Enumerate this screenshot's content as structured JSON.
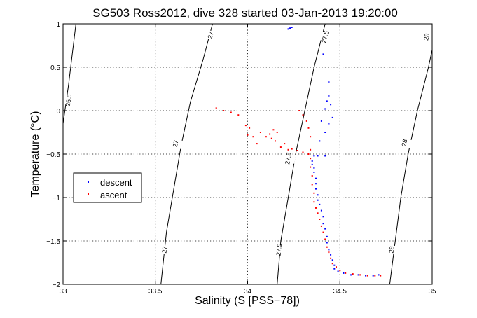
{
  "chart_data": {
    "type": "scatter",
    "title": "SG503 Ross2012, dive 328 started 03-Jan-2013 19:20:00",
    "xlabel": "Salinity (S [PSS−78])",
    "ylabel": "Temperature (°C)",
    "xlim": [
      33,
      35
    ],
    "ylim": [
      -2,
      1
    ],
    "grid": true,
    "legend_position": "left-middle",
    "x_ticks": [
      {
        "value": 33,
        "label": "33"
      },
      {
        "value": 33.5,
        "label": "33.5"
      },
      {
        "value": 34,
        "label": "34"
      },
      {
        "value": 34.5,
        "label": "34.5"
      },
      {
        "value": 35,
        "label": "35"
      }
    ],
    "y_ticks": [
      {
        "value": 1,
        "label": "1"
      },
      {
        "value": 0.5,
        "label": "0.5"
      },
      {
        "value": 0,
        "label": "0"
      },
      {
        "value": -0.5,
        "label": "−0.5"
      },
      {
        "value": -1,
        "label": "−1"
      },
      {
        "value": -1.5,
        "label": "−1.5"
      },
      {
        "value": -2,
        "label": "−2"
      }
    ],
    "density_contours": [
      {
        "label": "26.5",
        "points": [
          [
            33.0,
            -0.15
          ],
          [
            33.03,
            0.3
          ],
          [
            33.07,
            1.0
          ]
        ],
        "label_points": [
          {
            "x": 33.03,
            "y": 0.12
          }
        ]
      },
      {
        "label": "27",
        "points": [
          [
            33.53,
            -2.0
          ],
          [
            33.56,
            -1.4
          ],
          [
            33.6,
            -0.9
          ],
          [
            33.64,
            -0.4
          ],
          [
            33.69,
            0.1
          ],
          [
            33.76,
            0.6
          ],
          [
            33.81,
            1.0
          ]
        ],
        "label_points": [
          {
            "x": 33.55,
            "y": -1.6
          },
          {
            "x": 33.61,
            "y": -0.38
          },
          {
            "x": 33.8,
            "y": 0.87
          }
        ]
      },
      {
        "label": "27.5",
        "points": [
          [
            34.16,
            -2.0
          ],
          [
            34.18,
            -1.5
          ],
          [
            34.22,
            -1.0
          ],
          [
            34.26,
            -0.5
          ],
          [
            34.31,
            0.0
          ],
          [
            34.36,
            0.5
          ],
          [
            34.42,
            1.0
          ]
        ],
        "label_points": [
          {
            "x": 34.17,
            "y": -1.6
          },
          {
            "x": 34.22,
            "y": -0.55
          },
          {
            "x": 34.42,
            "y": 0.85
          }
        ]
      },
      {
        "label": "28",
        "points": [
          [
            34.77,
            -2.0
          ],
          [
            34.8,
            -1.5
          ],
          [
            34.83,
            -1.0
          ],
          [
            34.87,
            -0.5
          ],
          [
            34.92,
            0.0
          ],
          [
            34.98,
            0.5
          ],
          [
            35.03,
            1.0
          ]
        ],
        "label_points": [
          {
            "x": 34.78,
            "y": -1.6
          },
          {
            "x": 34.85,
            "y": -0.37
          },
          {
            "x": 34.97,
            "y": 0.85
          }
        ]
      }
    ],
    "series": [
      {
        "name": "descent",
        "color": "#0000ff",
        "points": [
          [
            34.23,
            0.95
          ],
          [
            34.22,
            0.94
          ],
          [
            34.24,
            0.96
          ],
          [
            34.41,
            0.65
          ],
          [
            34.44,
            0.33
          ],
          [
            34.44,
            0.17
          ],
          [
            34.43,
            0.11
          ],
          [
            34.45,
            0.07
          ],
          [
            34.42,
            0.02
          ],
          [
            34.46,
            -0.08
          ],
          [
            34.4,
            -0.12
          ],
          [
            34.44,
            -0.15
          ],
          [
            34.42,
            -0.25
          ],
          [
            34.39,
            -0.35
          ],
          [
            34.42,
            -0.52
          ],
          [
            34.38,
            -0.52
          ],
          [
            34.36,
            -0.52
          ],
          [
            34.35,
            -0.58
          ],
          [
            34.35,
            -0.62
          ],
          [
            34.36,
            -0.66
          ],
          [
            34.36,
            -0.71
          ],
          [
            34.37,
            -0.78
          ],
          [
            34.37,
            -0.84
          ],
          [
            34.37,
            -0.9
          ],
          [
            34.38,
            -0.97
          ],
          [
            34.38,
            -1.03
          ],
          [
            34.39,
            -1.08
          ],
          [
            34.4,
            -1.15
          ],
          [
            34.41,
            -1.22
          ],
          [
            34.41,
            -1.3
          ],
          [
            34.42,
            -1.36
          ],
          [
            34.43,
            -1.45
          ],
          [
            34.43,
            -1.52
          ],
          [
            34.44,
            -1.6
          ],
          [
            34.45,
            -1.66
          ],
          [
            34.46,
            -1.72
          ],
          [
            34.47,
            -1.78
          ],
          [
            34.47,
            -1.82
          ],
          [
            34.49,
            -1.85
          ],
          [
            34.52,
            -1.87
          ],
          [
            34.56,
            -1.89
          ],
          [
            34.6,
            -1.89
          ],
          [
            34.64,
            -1.9
          ],
          [
            34.68,
            -1.9
          ],
          [
            34.71,
            -1.89
          ]
        ]
      },
      {
        "name": "ascent",
        "color": "#ff0000",
        "points": [
          [
            33.83,
            0.03
          ],
          [
            33.87,
            0.0
          ],
          [
            33.91,
            -0.02
          ],
          [
            33.95,
            -0.05
          ],
          [
            33.99,
            -0.17
          ],
          [
            34.01,
            -0.2
          ],
          [
            34.0,
            -0.28
          ],
          [
            34.03,
            -0.3
          ],
          [
            34.05,
            -0.38
          ],
          [
            34.07,
            -0.25
          ],
          [
            34.1,
            -0.3
          ],
          [
            34.12,
            -0.27
          ],
          [
            34.13,
            -0.32
          ],
          [
            34.14,
            -0.22
          ],
          [
            34.15,
            -0.35
          ],
          [
            34.16,
            -0.25
          ],
          [
            34.18,
            -0.42
          ],
          [
            34.2,
            -0.38
          ],
          [
            34.22,
            -0.45
          ],
          [
            34.24,
            -0.44
          ],
          [
            34.27,
            -0.46
          ],
          [
            34.3,
            -0.48
          ],
          [
            34.28,
            0.0
          ],
          [
            34.3,
            -0.05
          ],
          [
            34.32,
            -0.12
          ],
          [
            34.33,
            -0.2
          ],
          [
            34.34,
            -0.3
          ],
          [
            34.34,
            -0.45
          ],
          [
            34.33,
            -0.5
          ],
          [
            34.34,
            -0.55
          ],
          [
            34.34,
            -0.65
          ],
          [
            34.35,
            -0.75
          ],
          [
            34.35,
            -0.85
          ],
          [
            34.36,
            -0.95
          ],
          [
            34.36,
            -1.05
          ],
          [
            34.37,
            -1.12
          ],
          [
            34.38,
            -1.18
          ],
          [
            34.39,
            -1.25
          ],
          [
            34.4,
            -1.33
          ],
          [
            34.41,
            -1.4
          ],
          [
            34.42,
            -1.48
          ],
          [
            34.43,
            -1.57
          ],
          [
            34.44,
            -1.63
          ],
          [
            34.45,
            -1.7
          ],
          [
            34.46,
            -1.76
          ],
          [
            34.48,
            -1.8
          ],
          [
            34.5,
            -1.84
          ],
          [
            34.53,
            -1.87
          ],
          [
            34.57,
            -1.88
          ],
          [
            34.61,
            -1.89
          ],
          [
            34.65,
            -1.9
          ],
          [
            34.69,
            -1.9
          ],
          [
            34.72,
            -1.9
          ]
        ]
      }
    ]
  }
}
